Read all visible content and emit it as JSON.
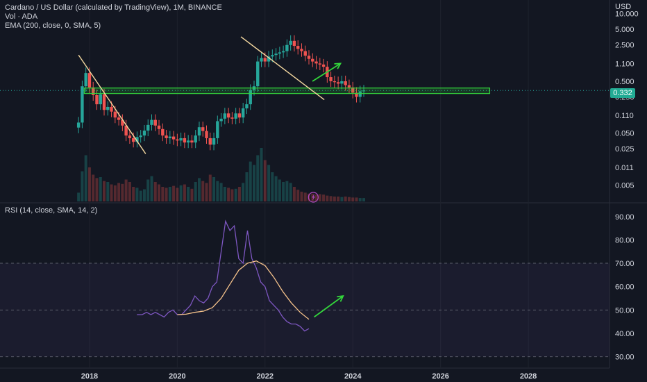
{
  "header": {
    "title": "Cardano / US Dollar (calculated by TradingView), 1M, BINANCE",
    "volume_label": "Vol · ADA",
    "ema_label": "EMA (200, close, 0, SMA, 5)",
    "rsi_label": "RSI (14, close, SMA, 14, 2)",
    "currency": "USD",
    "last_price": "0.332"
  },
  "colors": {
    "background": "#131722",
    "up": "#26a69a",
    "down": "#ef5350",
    "rsi_line": "#7e57c2",
    "rsi_ma": "#f5c28b",
    "trendline": "#f5d9a0",
    "support_zone": "#33d63b",
    "arrow": "#33d63b",
    "price_tag": "#22ab94"
  },
  "chart_data": [
    {
      "type": "candlestick",
      "scale": "log",
      "y_tick_labels": [
        "10.000",
        "5.000",
        "2.500",
        "1.100",
        "0.500",
        "0.250",
        "0.110",
        "0.050",
        "0.025",
        "0.011",
        "0.005"
      ],
      "y_ticks": [
        10,
        5,
        2.5,
        1.1,
        0.5,
        0.25,
        0.11,
        0.05,
        0.025,
        0.011,
        0.005
      ],
      "x_tick_labels": [
        "2018",
        "2020",
        "2022",
        "2024",
        "2026",
        "2028"
      ],
      "x_ticks": [
        2018,
        2020,
        2022,
        2024,
        2026,
        2028
      ],
      "xlim": [
        2015.96,
        2029.85
      ],
      "ylim": [
        0.0035,
        13.5
      ],
      "last_price": 0.332,
      "close": [
        0.08,
        0.4,
        0.72,
        0.38,
        0.27,
        0.18,
        0.28,
        0.14,
        0.16,
        0.13,
        0.1,
        0.09,
        0.07,
        0.045,
        0.04,
        0.034,
        0.042,
        0.045,
        0.056,
        0.072,
        0.09,
        0.07,
        0.06,
        0.045,
        0.04,
        0.043,
        0.038,
        0.036,
        0.04,
        0.033,
        0.036,
        0.033,
        0.045,
        0.065,
        0.055,
        0.04,
        0.03,
        0.04,
        0.085,
        0.095,
        0.12,
        0.1,
        0.095,
        0.12,
        0.1,
        0.15,
        0.18,
        0.34,
        0.4,
        1.2,
        1.4,
        1.2,
        1.5,
        1.6,
        1.7,
        1.8,
        1.9,
        2.5,
        3.0,
        2.4,
        2.1,
        1.9,
        1.55,
        1.35,
        1.2,
        1.1,
        1.05,
        0.95,
        0.6,
        0.5,
        0.48,
        0.45,
        0.5,
        0.42,
        0.38,
        0.3,
        0.25,
        0.32,
        0.332
      ],
      "volume_relative": [
        0.18,
        0.62,
        0.95,
        0.7,
        0.55,
        0.48,
        0.5,
        0.42,
        0.4,
        0.35,
        0.33,
        0.38,
        0.36,
        0.45,
        0.4,
        0.3,
        0.28,
        0.22,
        0.25,
        0.45,
        0.52,
        0.4,
        0.35,
        0.3,
        0.28,
        0.3,
        0.32,
        0.28,
        0.33,
        0.35,
        0.3,
        0.26,
        0.4,
        0.48,
        0.42,
        0.38,
        0.55,
        0.5,
        0.42,
        0.38,
        0.3,
        0.28,
        0.25,
        0.26,
        0.3,
        0.38,
        0.6,
        0.82,
        0.75,
        0.95,
        1.1,
        0.85,
        0.75,
        0.6,
        0.52,
        0.45,
        0.4,
        0.42,
        0.38,
        0.3,
        0.24,
        0.2,
        0.18,
        0.16,
        0.16,
        0.14,
        0.15,
        0.14,
        0.12,
        0.11,
        0.1,
        0.1,
        0.09,
        0.1,
        0.09,
        0.08,
        0.08,
        0.07,
        0.07
      ],
      "support_zone": {
        "x": [
          2017.88,
          2027.12
        ],
        "y": [
          0.29,
          0.37
        ]
      },
      "trendlines": [
        {
          "x": [
            2017.75,
            2019.28
          ],
          "y": [
            1.6,
            0.02
          ]
        },
        {
          "x": [
            2021.45,
            2023.35
          ],
          "y": [
            3.6,
            0.22
          ]
        }
      ],
      "arrow": {
        "x": [
          2023.08,
          2023.72
        ],
        "y": [
          0.5,
          1.1
        ]
      }
    },
    {
      "type": "line",
      "title": "",
      "ylim": [
        27.5,
        93.5
      ],
      "y_tick_labels": [
        "90.00",
        "80.00",
        "70.00",
        "60.00",
        "50.00",
        "40.00",
        "30.00"
      ],
      "y_ticks": [
        90,
        80,
        70,
        60,
        50,
        40,
        30
      ],
      "bands": [
        70,
        50,
        30
      ],
      "series": [
        {
          "values_x": [
            2019.08,
            2019.2,
            2019.3,
            2019.4,
            2019.5,
            2019.6,
            2019.7,
            2019.8,
            2019.9,
            2020.0,
            2020.1,
            2020.2,
            2020.3,
            2020.4,
            2020.5,
            2020.6,
            2020.7,
            2020.8,
            2020.9,
            2021.0,
            2021.1,
            2021.2,
            2021.3,
            2021.4,
            2021.5,
            2021.6,
            2021.7,
            2021.8,
            2021.9,
            2022.0,
            2022.1,
            2022.2,
            2022.3,
            2022.4,
            2022.5,
            2022.6,
            2022.7,
            2022.8,
            2022.9,
            2023.0
          ],
          "values": [
            48,
            48,
            49,
            48,
            49,
            48,
            47,
            49,
            50,
            48,
            48,
            50,
            52,
            56,
            54,
            53,
            55,
            60,
            62,
            75,
            88,
            84,
            86,
            72,
            70,
            84,
            72,
            68,
            62,
            60,
            54,
            52,
            50,
            47,
            45,
            44,
            44,
            43,
            41,
            42
          ]
        },
        {
          "values_x": [
            2020.0,
            2020.2,
            2020.4,
            2020.6,
            2020.8,
            2021.0,
            2021.2,
            2021.4,
            2021.6,
            2021.8,
            2022.0,
            2022.2,
            2022.4,
            2022.6,
            2022.8,
            2023.0
          ],
          "values": [
            48,
            48.2,
            49,
            49.5,
            51,
            55,
            61,
            67,
            70,
            71,
            69,
            64,
            58,
            53,
            49,
            46
          ]
        }
      ],
      "arrow": {
        "x": [
          2023.12,
          2023.78
        ],
        "y": [
          47,
          56
        ]
      }
    }
  ]
}
